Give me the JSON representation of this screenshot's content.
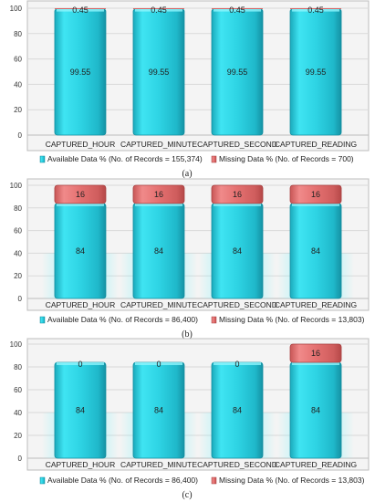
{
  "chart_data": [
    {
      "type": "bar",
      "stacked": true,
      "panel_label": "(a)",
      "categories": [
        "CAPTURED_HOUR",
        "CAPTURED_MINUTE",
        "CAPTURED_SECOND",
        "CAPTURED_READING"
      ],
      "series": [
        {
          "name": "Available Data % (No. of Records = 155,374)",
          "values": [
            99.55,
            99.55,
            99.55,
            99.55
          ],
          "color": "#2ecfe0"
        },
        {
          "name": "Missing Data % (No. of Records = 700)",
          "values": [
            0.45,
            0.45,
            0.45,
            0.45
          ],
          "color": "#e06a6a"
        }
      ],
      "data_labels": [
        [
          "99.55",
          "99.55",
          "99.55",
          "99.55"
        ],
        [
          "0.45",
          "0.45",
          "0.45",
          "0.45"
        ]
      ],
      "y_ticks": [
        "0",
        "20",
        "40",
        "60",
        "80",
        "100"
      ],
      "ylim": [
        0,
        100
      ],
      "grid": true,
      "legend_position": "bottom"
    },
    {
      "type": "bar",
      "stacked": true,
      "panel_label": "(b)",
      "categories": [
        "CAPTURED_HOUR",
        "CAPTURED_MINUTE",
        "CAPTURED_SECOND",
        "CAPTURED_READING"
      ],
      "series": [
        {
          "name": "Available Data % (No. of Records = 86,400)",
          "values": [
            84,
            84,
            84,
            84
          ],
          "color": "#2ecfe0"
        },
        {
          "name": "Missing Data % (No. of Records = 13,803)",
          "values": [
            16,
            16,
            16,
            16
          ],
          "color": "#e06a6a"
        }
      ],
      "data_labels": [
        [
          "84",
          "84",
          "84",
          "84"
        ],
        [
          "16",
          "16",
          "16",
          "16"
        ]
      ],
      "y_ticks": [
        "0",
        "20",
        "40",
        "60",
        "80",
        "100"
      ],
      "ylim": [
        0,
        100
      ],
      "grid": true,
      "legend_position": "bottom"
    },
    {
      "type": "bar",
      "stacked": true,
      "panel_label": "(c)",
      "categories": [
        "CAPTURED_HOUR",
        "CAPTURED_MINUTE",
        "CAPTURED_SECOND",
        "CAPTURED_READING"
      ],
      "series": [
        {
          "name": "Available Data % (No. of Records = 86,400)",
          "values": [
            84,
            84,
            84,
            84
          ],
          "color": "#2ecfe0"
        },
        {
          "name": "Missing Data % (No. of Records = 13,803)",
          "values": [
            0,
            0,
            0,
            16
          ],
          "color": "#e06a6a"
        }
      ],
      "data_labels": [
        [
          "84",
          "84",
          "84",
          "84"
        ],
        [
          "0",
          "0",
          "0",
          "16"
        ]
      ],
      "y_ticks": [
        "0",
        "20",
        "40",
        "60",
        "80",
        "100"
      ],
      "ylim": [
        0,
        100
      ],
      "grid": true,
      "legend_position": "bottom"
    }
  ]
}
